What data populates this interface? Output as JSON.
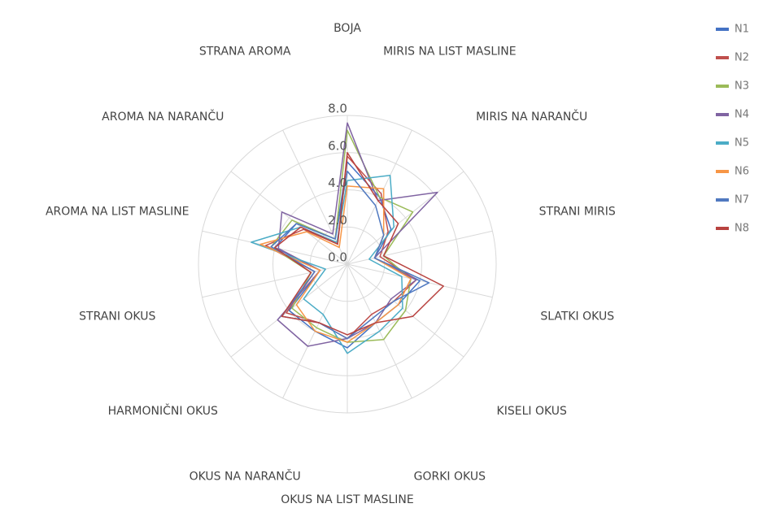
{
  "chart_data": {
    "type": "radar",
    "categories": [
      "BOJA",
      "MIRIS NA LIST MASLINE",
      "MIRIS NA NARANČU",
      "STRANI MIRIS",
      "SLATKI OKUS",
      "KISELI OKUS",
      "GORKI OKUS",
      "OKUS NA LIST MASLINE",
      "OKUS NA NARANČU",
      "HARMONIČNI OKUS",
      "STRANI OKUS",
      "AROMA NA LIST MASLINE",
      "AROMA NA NARANČU",
      "STRANA AROMA"
    ],
    "series": [
      {
        "name": "N1",
        "color": "#4472c4",
        "values": [
          5.5,
          4.0,
          3.0,
          1.5,
          4.0,
          3.5,
          3.5,
          4.5,
          4.0,
          4.0,
          1.5,
          4.0,
          3.5,
          1.5
        ]
      },
      {
        "name": "N2",
        "color": "#c0504d",
        "values": [
          5.8,
          4.2,
          2.8,
          1.8,
          3.8,
          3.2,
          3.0,
          4.0,
          3.5,
          4.2,
          1.8,
          4.5,
          3.0,
          1.2
        ]
      },
      {
        "name": "N3",
        "color": "#9bbb59",
        "values": [
          7.2,
          4.0,
          4.5,
          2.0,
          3.5,
          4.0,
          4.5,
          4.2,
          3.8,
          3.8,
          2.0,
          4.2,
          3.8,
          1.5
        ]
      },
      {
        "name": "N4",
        "color": "#8064a2",
        "values": [
          7.6,
          3.8,
          6.2,
          1.5,
          3.8,
          3.0,
          3.5,
          4.0,
          4.9,
          4.8,
          1.5,
          3.8,
          4.5,
          1.8
        ]
      },
      {
        "name": "N5",
        "color": "#4bacc6",
        "values": [
          4.5,
          5.3,
          3.2,
          1.2,
          3.0,
          3.8,
          4.0,
          4.8,
          3.0,
          3.0,
          1.2,
          5.3,
          3.2,
          1.3
        ]
      },
      {
        "name": "N6",
        "color": "#f79646",
        "values": [
          4.2,
          4.5,
          2.5,
          1.5,
          3.5,
          3.5,
          3.5,
          4.2,
          4.0,
          3.5,
          1.5,
          4.8,
          2.8,
          1.0
        ]
      },
      {
        "name": "N7",
        "color": "#5079c0",
        "values": [
          5.0,
          3.5,
          2.5,
          1.5,
          4.5,
          3.2,
          3.2,
          4.0,
          3.5,
          4.5,
          1.8,
          4.2,
          3.5,
          1.5
        ]
      },
      {
        "name": "N8",
        "color": "#b8423f",
        "values": [
          6.0,
          3.8,
          3.5,
          2.0,
          5.3,
          4.5,
          3.5,
          3.8,
          3.5,
          4.5,
          2.0,
          4.0,
          3.2,
          1.2
        ]
      }
    ],
    "ylim": [
      0,
      8
    ],
    "yticks": [
      {
        "value": 0,
        "label": "0.0"
      },
      {
        "value": 2,
        "label": "2.0"
      },
      {
        "value": 4,
        "label": "4.0"
      },
      {
        "value": 6,
        "label": "6.0"
      },
      {
        "value": 8,
        "label": "8.0"
      }
    ],
    "grid": true,
    "legend": "right"
  }
}
